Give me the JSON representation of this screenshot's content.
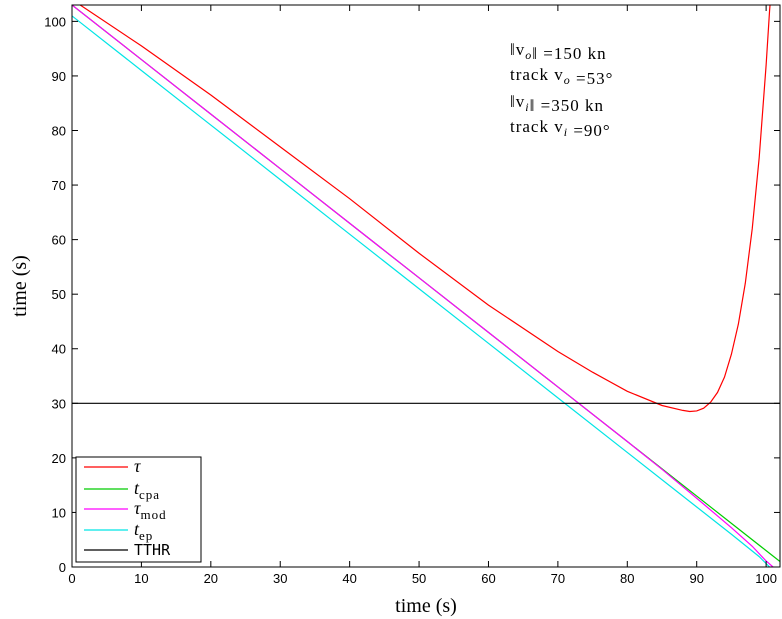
{
  "chart_data": {
    "type": "line",
    "xlabel": "time (s)",
    "ylabel": "time (s)",
    "xlim": [
      0,
      102
    ],
    "ylim": [
      0,
      103
    ],
    "xticks": [
      0,
      10,
      20,
      30,
      40,
      50,
      60,
      70,
      80,
      90,
      100
    ],
    "yticks": [
      0,
      10,
      20,
      30,
      40,
      50,
      60,
      70,
      80,
      90,
      100
    ],
    "grid": false,
    "legend_position": "bottom-left",
    "annotations": [
      "‖v_o‖ =150 kn",
      "track v_o =53°",
      "‖v_i‖ =350 kn",
      "track v_i =90°"
    ],
    "series": [
      {
        "name": "τ",
        "color": "#ff0000",
        "x": [
          0,
          10,
          20,
          30,
          40,
          50,
          60,
          70,
          75,
          80,
          85,
          88,
          89,
          90,
          91,
          92,
          93,
          94,
          95,
          96,
          97,
          98,
          99,
          100,
          100.5,
          101
        ],
        "y": [
          104,
          95.5,
          86.5,
          77,
          67.5,
          57.5,
          48,
          39.5,
          35.7,
          32.2,
          29.6,
          28.7,
          28.5,
          28.6,
          29.1,
          30.2,
          32,
          34.8,
          39,
          44.5,
          52,
          62,
          75,
          92,
          102,
          110
        ]
      },
      {
        "name": "t_cpa",
        "color": "#00cc00",
        "x": [
          0,
          10,
          20,
          30,
          40,
          50,
          60,
          70,
          80,
          90,
          100,
          102
        ],
        "y": [
          103,
          93,
          83,
          73,
          63,
          53,
          43,
          33,
          23,
          13,
          3,
          1
        ]
      },
      {
        "name": "τ_mod",
        "color": "#ff00ff",
        "x": [
          0,
          10,
          20,
          30,
          40,
          50,
          60,
          70,
          80,
          85,
          90,
          95,
          98,
          100,
          101
        ],
        "y": [
          103,
          93,
          83,
          73,
          63,
          53,
          43,
          33,
          23,
          17.9,
          12.6,
          7.2,
          3.8,
          1.1,
          0
        ]
      },
      {
        "name": "t_ep",
        "color": "#00e5e5",
        "x": [
          0,
          10,
          20,
          30,
          40,
          50,
          60,
          70,
          80,
          90,
          95,
          99,
          100.5
        ],
        "y": [
          101,
          91,
          81,
          71,
          61,
          51,
          41,
          31,
          21,
          11,
          6,
          1.9,
          0
        ]
      },
      {
        "name": "TTHR",
        "color": "#000000",
        "x": [
          0,
          102
        ],
        "y": [
          30,
          30
        ]
      }
    ]
  }
}
